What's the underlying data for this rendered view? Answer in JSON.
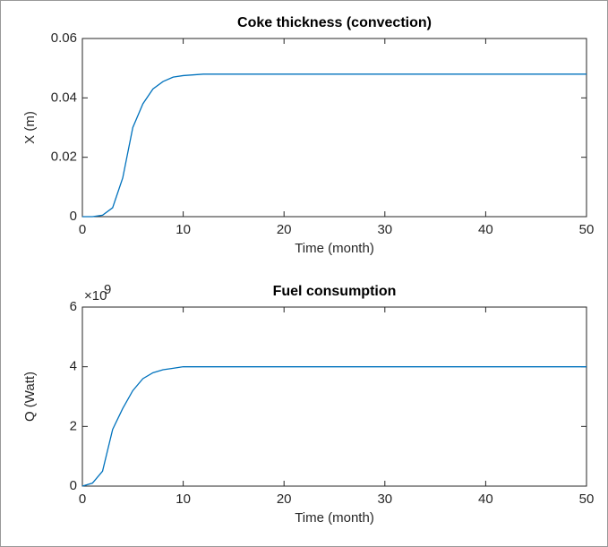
{
  "chart_data": [
    {
      "type": "line",
      "title": "Coke thickness (convection)",
      "xlabel": "Time (month)",
      "ylabel": "X (m)",
      "x": [
        0,
        1,
        2,
        3,
        4,
        5,
        6,
        7,
        8,
        9,
        10,
        12,
        15,
        20,
        30,
        40,
        50
      ],
      "values": [
        0,
        0,
        0.0005,
        0.003,
        0.013,
        0.03,
        0.038,
        0.043,
        0.0455,
        0.047,
        0.0475,
        0.048,
        0.048,
        0.048,
        0.048,
        0.048,
        0.048
      ],
      "color": "#0072bd",
      "xlim": [
        0,
        50
      ],
      "xticks": [
        0,
        10,
        20,
        30,
        40,
        50
      ],
      "ylim": [
        0,
        0.06
      ],
      "yticks": [
        0,
        0.02,
        0.04,
        0.06
      ]
    },
    {
      "type": "line",
      "title": "Fuel consumption",
      "xlabel": "Time (month)",
      "ylabel": "Q (Watt)",
      "y_scale_label": "×10",
      "y_scale_exponent": "9",
      "x": [
        0,
        1,
        2,
        3,
        4,
        5,
        6,
        7,
        8,
        9,
        10,
        15,
        20,
        30,
        40,
        50
      ],
      "values": [
        0,
        0.1,
        0.5,
        1.9,
        2.6,
        3.2,
        3.6,
        3.8,
        3.9,
        3.95,
        4,
        4,
        4,
        4,
        4,
        4
      ],
      "color": "#0072bd",
      "xlim": [
        0,
        50
      ],
      "xticks": [
        0,
        10,
        20,
        30,
        40,
        50
      ],
      "ylim": [
        0,
        6
      ],
      "yticks": [
        0,
        2,
        4,
        6
      ]
    }
  ]
}
